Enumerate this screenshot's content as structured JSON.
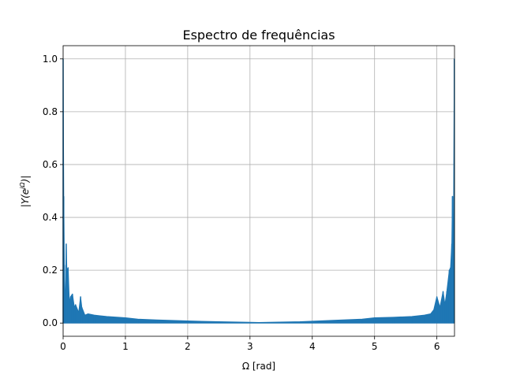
{
  "chart_data": {
    "type": "line",
    "title": "Espectro de frequências",
    "xlabel": "Ω [rad]",
    "ylabel_parts": {
      "pre": "|Y(e",
      "sup": "jΩ",
      "post": ")|"
    },
    "xlim": [
      0,
      6.2832
    ],
    "ylim": [
      -0.05,
      1.05
    ],
    "xticks": [
      0,
      1,
      2,
      3,
      4,
      5,
      6
    ],
    "yticks": [
      0.0,
      0.2,
      0.4,
      0.6,
      0.8,
      1.0
    ],
    "xtick_labels": [
      "0",
      "1",
      "2",
      "3",
      "4",
      "5",
      "6"
    ],
    "ytick_labels": [
      "0.0",
      "0.2",
      "0.4",
      "0.6",
      "0.8",
      "1.0"
    ],
    "grid": true,
    "series": [
      {
        "color": "#1f77b4",
        "x": [
          0.0,
          0.01,
          0.02,
          0.03,
          0.04,
          0.05,
          0.06,
          0.08,
          0.1,
          0.12,
          0.15,
          0.18,
          0.2,
          0.25,
          0.28,
          0.3,
          0.35,
          0.4,
          0.5,
          0.7,
          1.0,
          1.2,
          1.5,
          2.0,
          2.5,
          3.0,
          3.1416,
          3.3,
          3.8,
          4.3,
          4.8,
          5.0,
          5.3,
          5.6,
          5.8,
          5.9,
          5.95,
          6.0,
          6.05,
          6.1,
          6.13,
          6.16,
          6.2,
          6.22,
          6.24,
          6.25,
          6.26,
          6.27,
          6.28
        ],
        "y": [
          1.0,
          0.48,
          0.22,
          0.12,
          0.08,
          0.3,
          0.2,
          0.21,
          0.08,
          0.1,
          0.11,
          0.06,
          0.07,
          0.04,
          0.1,
          0.06,
          0.03,
          0.035,
          0.03,
          0.025,
          0.02,
          0.015,
          0.012,
          0.008,
          0.005,
          0.003,
          0.002,
          0.003,
          0.005,
          0.01,
          0.015,
          0.02,
          0.022,
          0.025,
          0.03,
          0.035,
          0.05,
          0.1,
          0.06,
          0.12,
          0.07,
          0.12,
          0.2,
          0.21,
          0.3,
          0.48,
          0.22,
          0.48,
          1.0
        ]
      }
    ]
  }
}
